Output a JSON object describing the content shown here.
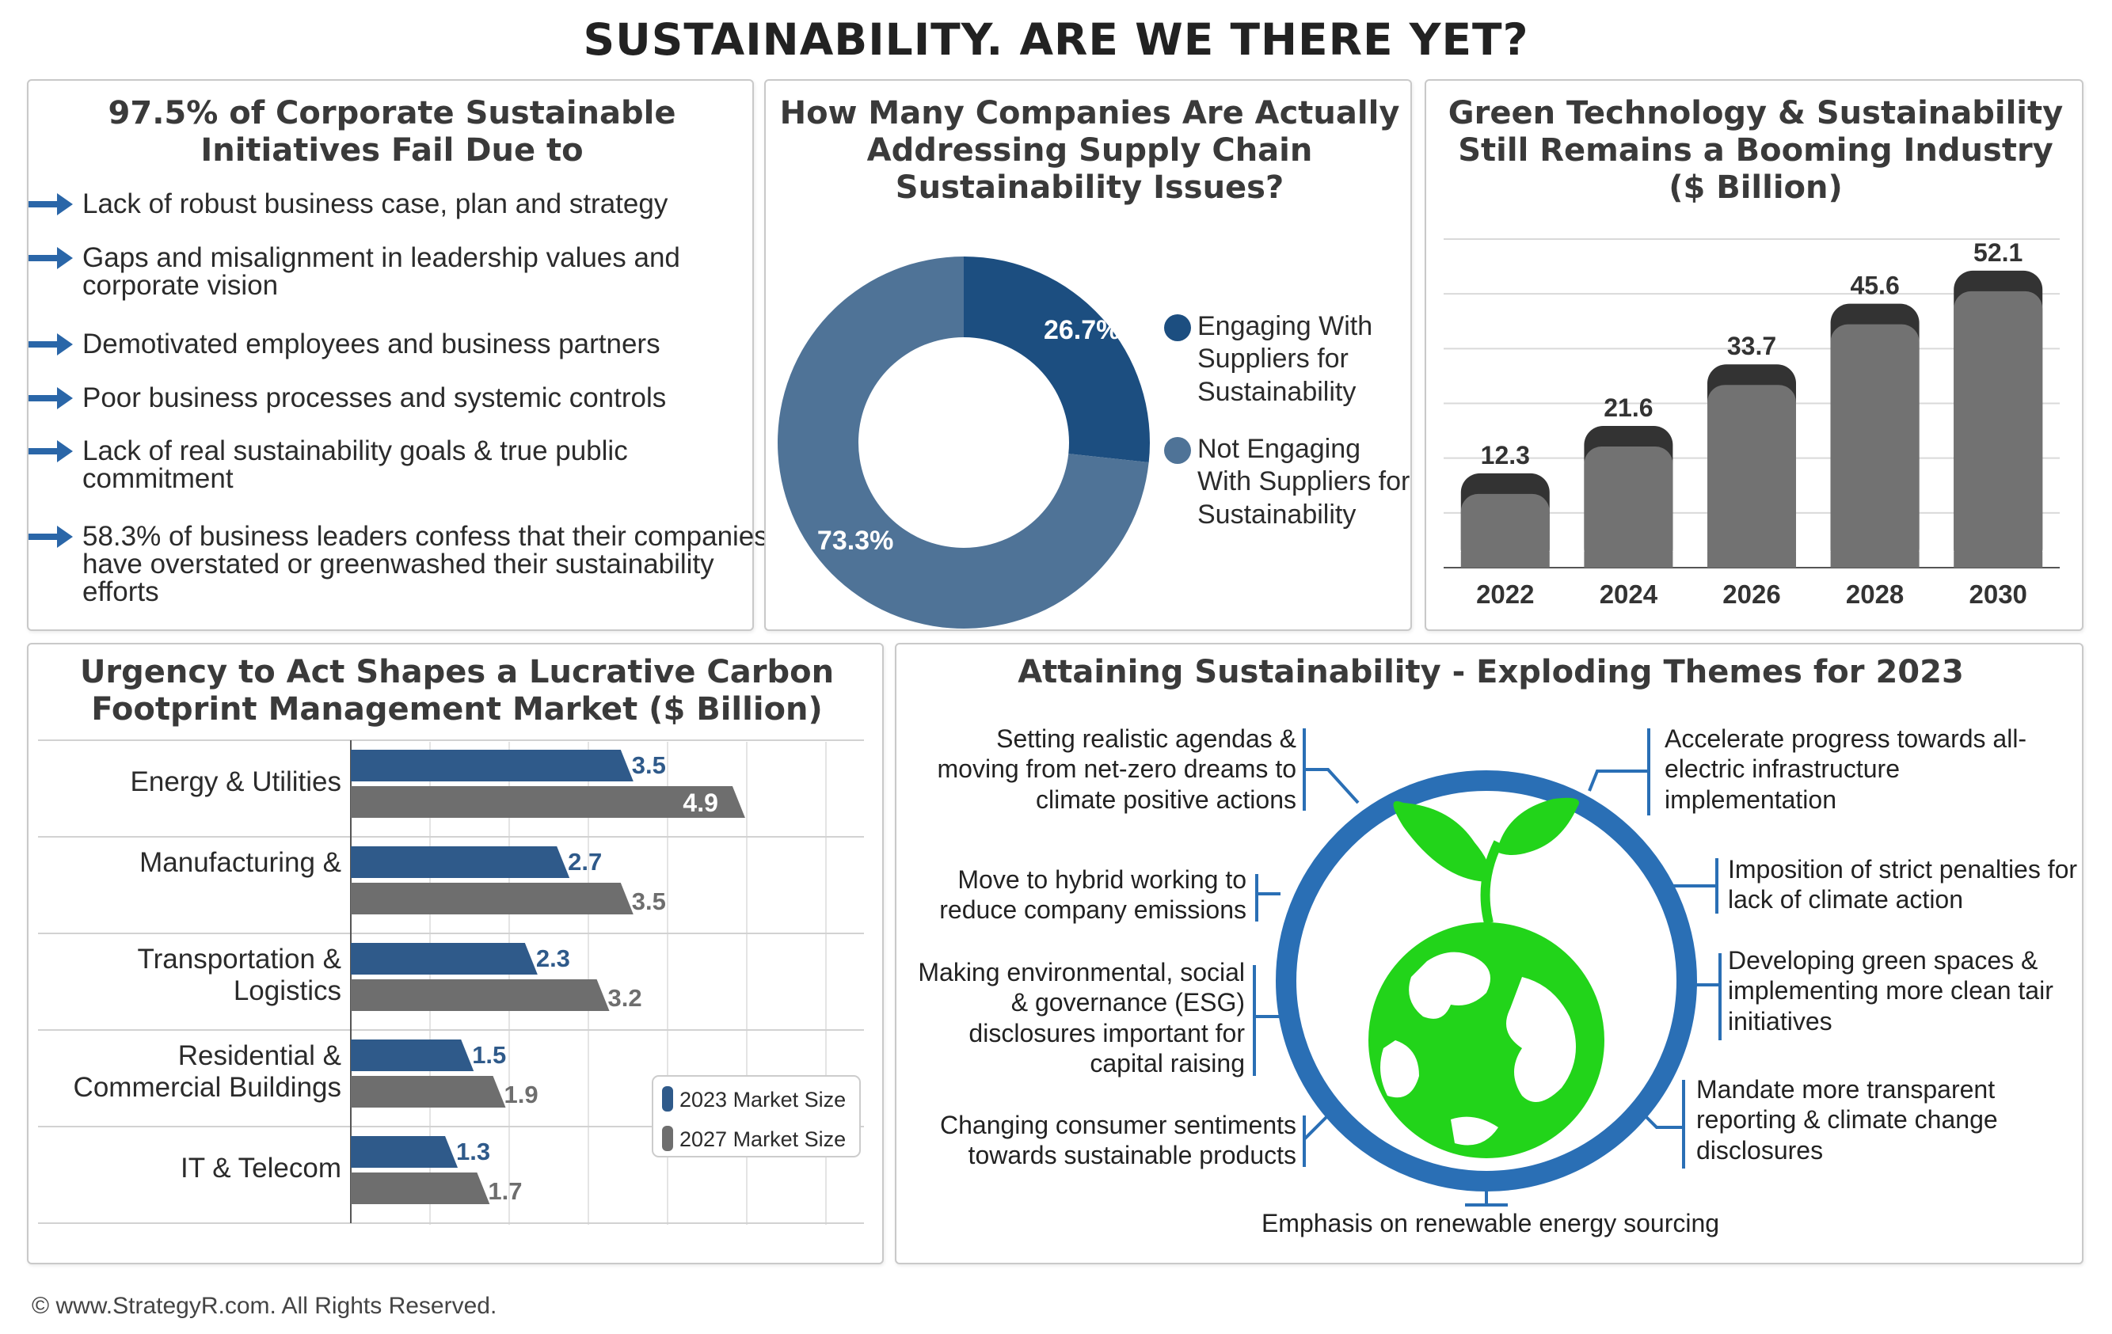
{
  "title": "SUSTAINABILITY. ARE WE THERE YET?",
  "footer": "© www.StrategyR.com. All Rights Reserved.",
  "colors": {
    "navy": "#1c4e80",
    "steel": "#4f7397",
    "gray": "#727272",
    "dark": "#333333",
    "green": "#22d41a",
    "ring": "#2a6fb5",
    "accent": "#2a66a8"
  },
  "failures": {
    "title_line1": "97.5% of Corporate Sustainable",
    "title_line2": "Initiatives Fail Due to",
    "items": [
      "Lack of robust business case, plan and strategy",
      "Gaps and misalignment in leadership values and corporate vision",
      "Demotivated employees and business partners",
      "Poor business processes and systemic controls",
      "Lack of real sustainability goals & true public commitment",
      "58.3% of business leaders confess that their companies have overstated or greenwashed their sustainability efforts"
    ]
  },
  "supply": {
    "title_line1": "How Many Companies Are Actually",
    "title_line2": "Addressing Supply Chain",
    "title_line3": "Sustainability Issues?",
    "legend_1": "Engaging With Suppliers for Sustainability",
    "legend_2": "Not Engaging With Suppliers for Sustainability"
  },
  "green": {
    "title_line1": "Green Technology & Sustainability",
    "title_line2": "Still Remains a Booming Industry",
    "title_line3": "($ Billion)"
  },
  "carbon": {
    "title_line1": "Urgency to Act Shapes a Lucrative Carbon",
    "title_line2": "Footprint Management Market ($ Billion)"
  },
  "themes": {
    "title": "Attaining Sustainability - Exploding Themes for 2023",
    "left": [
      "Setting realistic agendas & moving from net-zero dreams to climate positive actions",
      "Move to hybrid working to reduce company emissions",
      "Making environmental, social & governance (ESG) disclosures important for capital raising",
      "Changing consumer sentiments towards sustainable products"
    ],
    "right": [
      "Accelerate progress towards all-electric infrastructure implementation",
      "Imposition of strict penalties for lack of climate action",
      "Developing green spaces & implementing more clean tair initiatives",
      "Mandate more transparent reporting & climate change disclosures"
    ],
    "bottom": "Emphasis on renewable energy sourcing",
    "center_icon": "globe-with-sprout-icon"
  },
  "chart_data": [
    {
      "type": "pie",
      "title": "How Many Companies Are Actually Addressing Supply Chain Sustainability Issues?",
      "labels": [
        "Engaging With Suppliers for Sustainability",
        "Not Engaging With Suppliers for Sustainability"
      ],
      "values": [
        26.7,
        73.3
      ],
      "value_labels": [
        "26.7%",
        "73.3%"
      ],
      "colors": [
        "#1c4e80",
        "#4f7397"
      ],
      "donut": true,
      "legend": "right"
    },
    {
      "type": "bar",
      "title": "Green Technology & Sustainability Still Remains a Booming Industry ($ Billion)",
      "categories": [
        "2022",
        "2024",
        "2026",
        "2028",
        "2030"
      ],
      "values": [
        12.3,
        21.6,
        33.7,
        45.6,
        52.1
      ],
      "ylim": [
        0,
        60
      ],
      "grid": true
    },
    {
      "type": "bar",
      "orientation": "horizontal",
      "title": "Urgency to Act Shapes a Lucrative Carbon Footprint Management Market ($ Billion)",
      "categories": [
        "Energy & Utilities",
        "Manufacturing",
        "Transportation & Logistics",
        "Residential & Commercial Buildings",
        "IT & Telecom"
      ],
      "series": [
        {
          "name": "2023 Market Size",
          "values": [
            3.5,
            2.7,
            2.3,
            1.5,
            1.3
          ],
          "color": "#2f5a8a"
        },
        {
          "name": "2027 Market Size",
          "values": [
            4.9,
            3.5,
            3.2,
            1.9,
            1.7
          ],
          "color": "#6e6e6e"
        }
      ],
      "xlim": [
        0,
        5
      ],
      "legend": "bottom-right",
      "grid": true
    }
  ]
}
